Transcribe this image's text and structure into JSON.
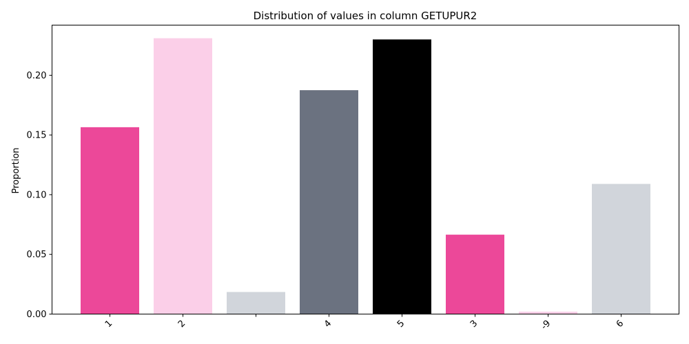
{
  "chart_data": {
    "type": "bar",
    "title": "Distribution of values in column GETUPUR2",
    "xlabel": "",
    "ylabel": "Proportion",
    "categories": [
      "1",
      "2",
      "",
      "4",
      "5",
      "3",
      "-9",
      "6"
    ],
    "values": [
      0.1565,
      0.231,
      0.0185,
      0.1875,
      0.23,
      0.0665,
      0.002,
      0.109
    ],
    "colors": [
      "#ec4899",
      "#fbcfe8",
      "#d1d5db",
      "#6b7280",
      "#000000",
      "#ec4899",
      "#fbcfe8",
      "#d1d5db"
    ],
    "ylim": [
      0,
      0.242
    ],
    "yticks": [
      "0.00",
      "0.05",
      "0.10",
      "0.15",
      "0.20"
    ],
    "grid": false,
    "legend": "none"
  }
}
